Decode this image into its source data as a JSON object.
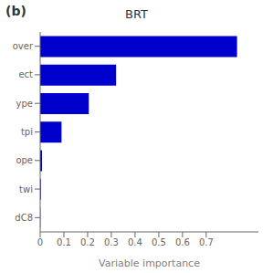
{
  "chart_data": {
    "type": "bar",
    "orientation": "horizontal",
    "title": "BRT",
    "annotations": [
      "(b)"
    ],
    "categories": [
      "over",
      "ect",
      "ype",
      "tpi",
      "ope",
      "twi",
      "dC8"
    ],
    "values": [
      0.83,
      0.32,
      0.205,
      0.09,
      0.008,
      0.003,
      0.001
    ],
    "color": "#0000cc",
    "x_label": "Variable importance",
    "xlim": [
      0,
      0.92
    ],
    "xticks": [
      0,
      0.1,
      0.2,
      0.3,
      0.4,
      0.5,
      0.6,
      0.7
    ],
    "grid": false
  }
}
